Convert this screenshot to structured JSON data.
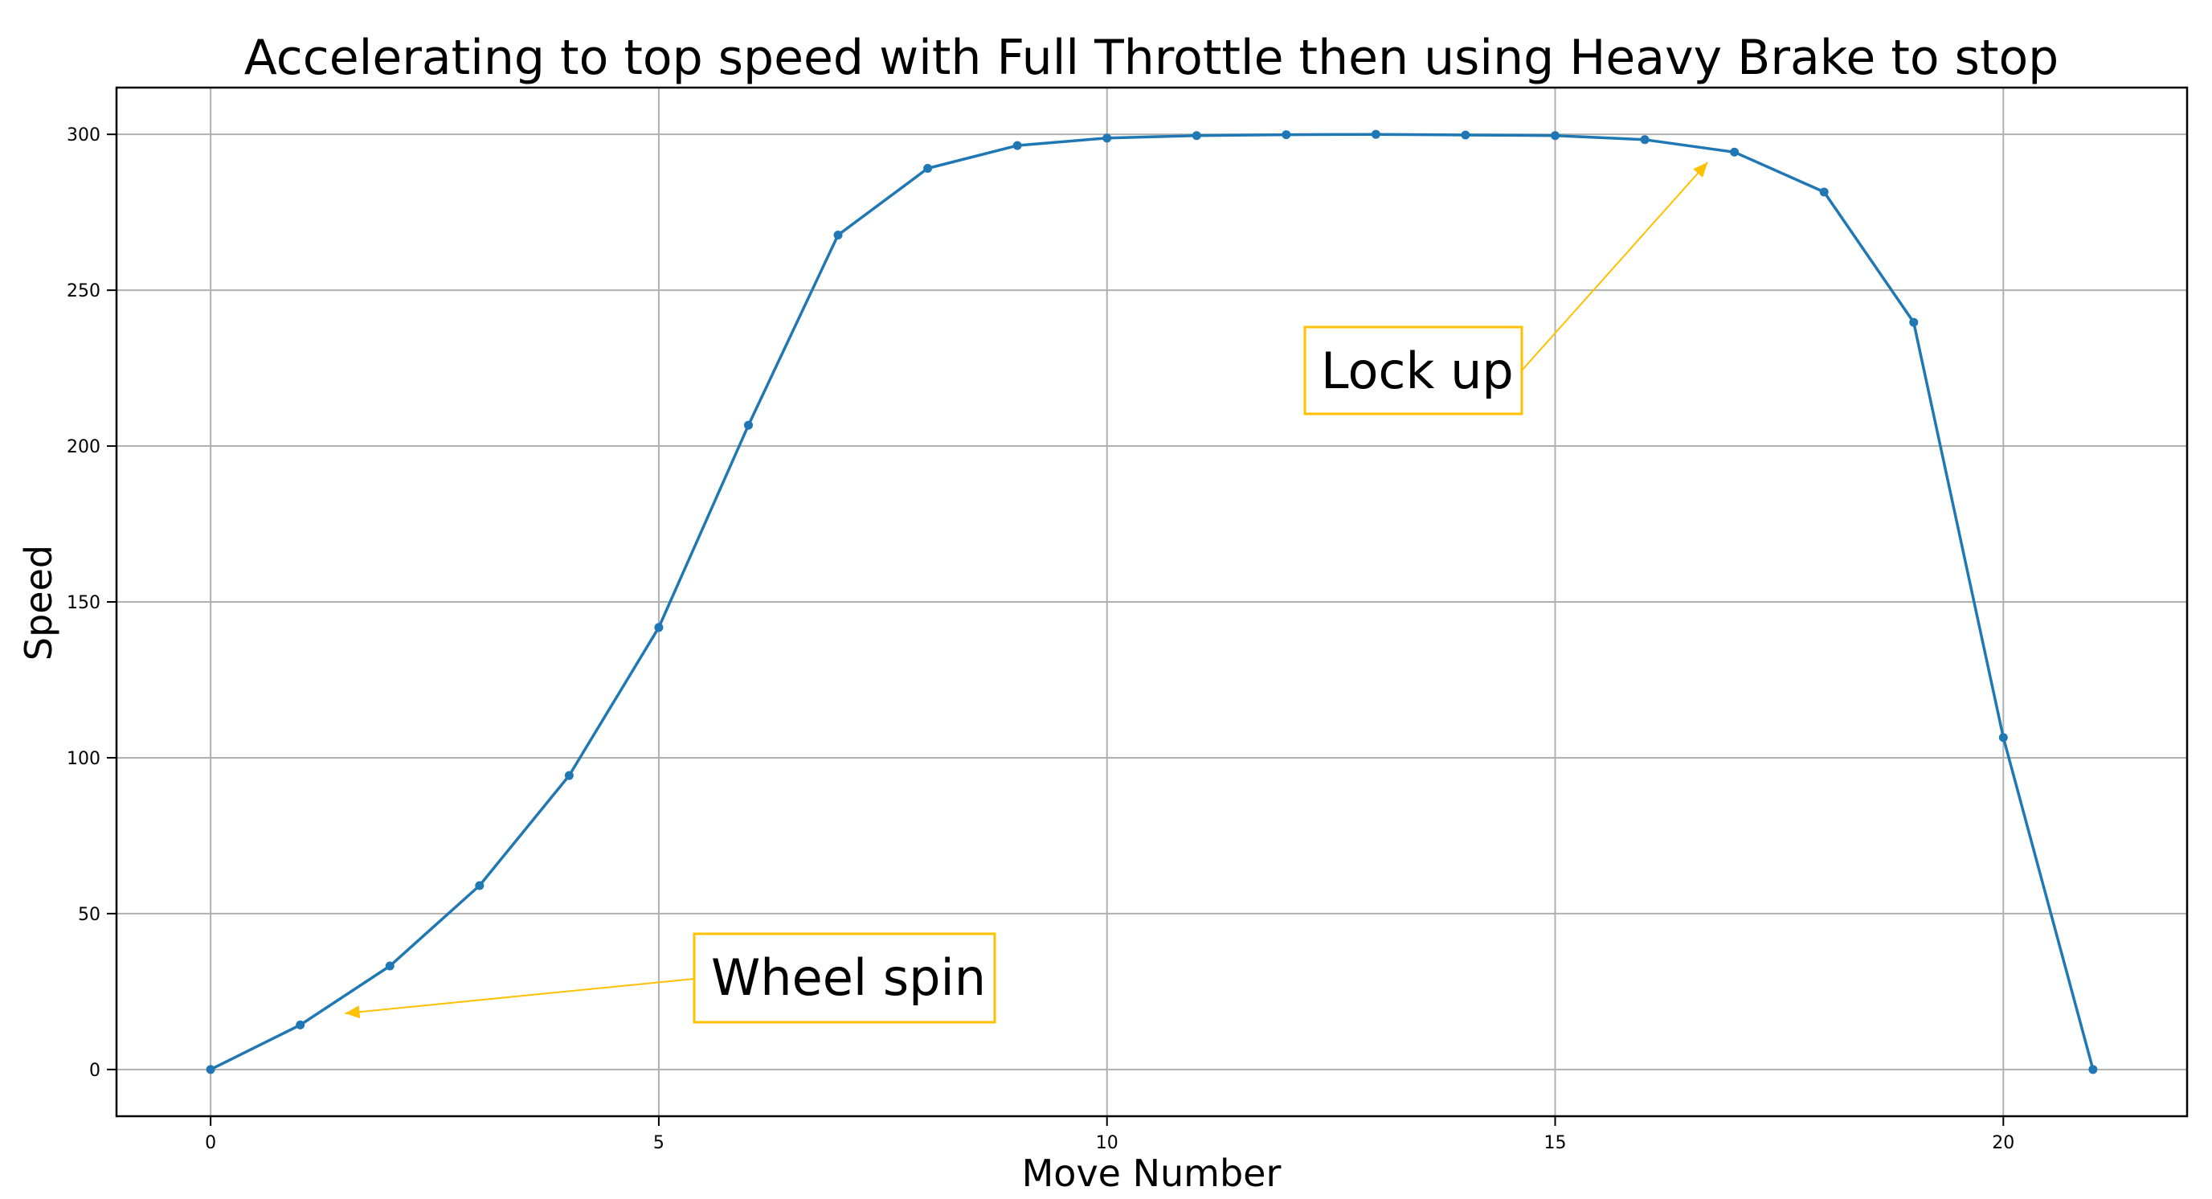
{
  "chart_data": {
    "type": "line",
    "title": "Accelerating to top speed with Full Throttle then using Heavy Brake to stop",
    "xlabel": "Move Number",
    "ylabel": "Speed",
    "xlim": [
      -1.05,
      22.05
    ],
    "ylim": [
      -15,
      315
    ],
    "xticks": [
      0,
      5,
      10,
      15,
      20
    ],
    "yticks": [
      0,
      50,
      100,
      150,
      200,
      250,
      300
    ],
    "grid": true,
    "series": [
      {
        "color": "#1f77b4",
        "x": [
          0,
          1,
          2,
          3,
          4,
          5,
          6,
          7,
          8,
          9,
          10,
          11,
          12,
          13,
          14,
          15,
          16,
          17,
          18,
          19,
          20,
          21
        ],
        "y": [
          0,
          14.3,
          33.2,
          59,
          94.3,
          141.8,
          206.7,
          267.7,
          289.1,
          296.4,
          298.8,
          299.6,
          299.9,
          300,
          299.8,
          299.6,
          298.3,
          294.3,
          281.5,
          239.7,
          106.5,
          0
        ]
      }
    ],
    "annotations": [
      {
        "text": "Wheel spin",
        "target": [
          1.5,
          18
        ],
        "color": "#ffc000"
      },
      {
        "text": "Lock up",
        "target": [
          16.7,
          291
        ],
        "color": "#ffc000"
      }
    ]
  }
}
